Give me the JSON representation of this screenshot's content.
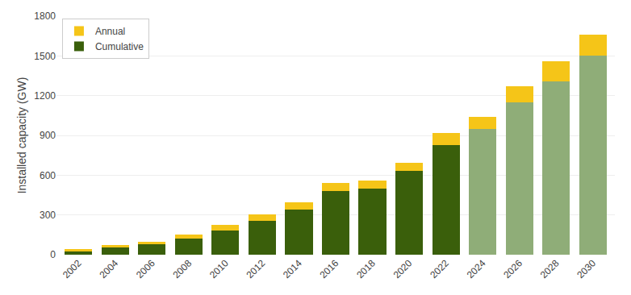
{
  "chart_data": {
    "type": "bar",
    "stacked": true,
    "ylabel": "Installed capacity (GW)",
    "categories": [
      "2002",
      "2004",
      "2006",
      "2008",
      "2010",
      "2012",
      "2014",
      "2016",
      "2018",
      "2020",
      "2022",
      "2024",
      "2026",
      "2028",
      "2030"
    ],
    "series": [
      {
        "name": "Cumulative",
        "colors": [
          "#3a5f0b",
          "#3a5f0b",
          "#3a5f0b",
          "#3a5f0b",
          "#3a5f0b",
          "#3a5f0b",
          "#3a5f0b",
          "#3a5f0b",
          "#3a5f0b",
          "#3a5f0b",
          "#3a5f0b",
          "#8fad78",
          "#8fad78",
          "#8fad78",
          "#8fad78"
        ],
        "values": [
          30,
          55,
          80,
          120,
          185,
          255,
          340,
          480,
          500,
          630,
          830,
          950,
          1150,
          1310,
          1500
        ]
      },
      {
        "name": "Annual",
        "color": "#f5c518",
        "values": [
          10,
          15,
          20,
          30,
          40,
          50,
          55,
          60,
          60,
          65,
          90,
          90,
          120,
          150,
          160
        ]
      }
    ],
    "ylim": [
      0,
      1800
    ],
    "yticks": [
      0,
      300,
      600,
      900,
      1200,
      1500,
      1800
    ],
    "grid": true,
    "legend": "upper left"
  }
}
